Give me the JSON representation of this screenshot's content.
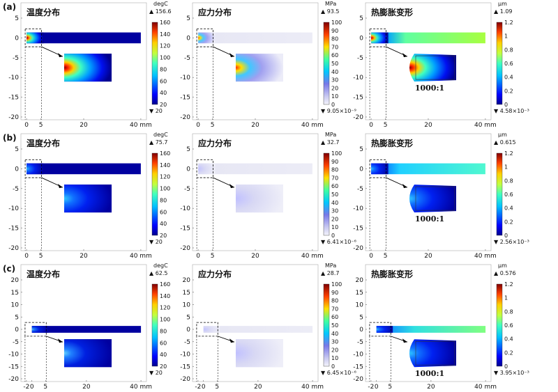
{
  "figure": {
    "rows": [
      {
        "label": "(a)",
        "panels": [
          {
            "title": "温度分布",
            "unit": "degC",
            "max_label": "156.6",
            "min_label": "20",
            "cb_ticks": [
              "160",
              "140",
              "120",
              "100",
              "80",
              "60",
              "40",
              "20"
            ],
            "cmap": "jet",
            "field": "temp",
            "intensity": 1.0,
            "ratio": ""
          },
          {
            "title": "应力分布",
            "unit": "MPa",
            "max_label": "93.5",
            "min_label": "9.05×10⁻⁹",
            "cb_ticks": [
              "100",
              "90",
              "80",
              "70",
              "60",
              "50",
              "40",
              "30",
              "20",
              "10",
              "0"
            ],
            "cmap": "stress",
            "field": "stress",
            "intensity": 1.0,
            "ratio": ""
          },
          {
            "title": "热膨胀变形",
            "unit": "μm",
            "max_label": "1.09",
            "min_label": "4.58×10⁻³",
            "cb_ticks": [
              "1.2",
              "1",
              "0.8",
              "0.6",
              "0.4",
              "0.2",
              "0"
            ],
            "cmap": "jet",
            "field": "deform",
            "intensity": 1.0,
            "ratio": "1000:1"
          }
        ],
        "x_ticks": [
          "0",
          "5",
          "20",
          "40 mm"
        ],
        "y_ticks": [
          "5",
          "0",
          "-5",
          "-10",
          "-15",
          "-20"
        ]
      },
      {
        "label": "(b)",
        "panels": [
          {
            "title": "温度分布",
            "unit": "degC",
            "max_label": "75.7",
            "min_label": "20",
            "cb_ticks": [
              "160",
              "140",
              "120",
              "100",
              "80",
              "60",
              "40",
              "20"
            ],
            "cmap": "jet",
            "field": "temp",
            "intensity": 0.45,
            "ratio": ""
          },
          {
            "title": "应力分布",
            "unit": "MPa",
            "max_label": "32.7",
            "min_label": "6.41×10⁻⁶",
            "cb_ticks": [
              "100",
              "90",
              "80",
              "70",
              "60",
              "50",
              "40",
              "30",
              "20",
              "10",
              "0"
            ],
            "cmap": "stress",
            "field": "stress",
            "intensity": 0.35,
            "ratio": ""
          },
          {
            "title": "热膨胀变形",
            "unit": "μm",
            "max_label": "0.615",
            "min_label": "2.56×10⁻³",
            "cb_ticks": [
              "1.2",
              "1",
              "0.8",
              "0.6",
              "0.4",
              "0.2",
              "0"
            ],
            "cmap": "jet",
            "field": "deform",
            "intensity": 0.6,
            "ratio": "1000:1"
          }
        ],
        "x_ticks": [
          "0",
          "5",
          "20",
          "40 mm"
        ],
        "y_ticks": [
          "5",
          "0",
          "-5",
          "-10",
          "-15",
          "-20"
        ]
      },
      {
        "label": "(c)",
        "panels": [
          {
            "title": "温度分布",
            "unit": "degC",
            "max_label": "62.5",
            "min_label": "20",
            "cb_ticks": [
              "160",
              "140",
              "120",
              "100",
              "80",
              "60",
              "40",
              "20"
            ],
            "cmap": "jet",
            "field": "temp",
            "intensity": 0.32,
            "ratio": ""
          },
          {
            "title": "应力分布",
            "unit": "MPa",
            "max_label": "28.7",
            "min_label": "6.45×10⁻⁶",
            "cb_ticks": [
              "100",
              "90",
              "80",
              "70",
              "60",
              "50",
              "40",
              "30",
              "20",
              "10",
              "0"
            ],
            "cmap": "stress",
            "field": "stress",
            "intensity": 0.3,
            "ratio": ""
          },
          {
            "title": "热膨胀变形",
            "unit": "μm",
            "max_label": "0.576",
            "min_label": "3.95×10⁻³",
            "cb_ticks": [
              "1.2",
              "1",
              "0.8",
              "0.6",
              "0.4",
              "0.2",
              "0"
            ],
            "cmap": "jet",
            "field": "deform",
            "intensity": 0.55,
            "ratio": "1000:1"
          }
        ],
        "x_ticks": [
          "-2",
          "0",
          "5",
          "20",
          "40 mm"
        ],
        "y_ticks": [
          "20",
          "15",
          "10",
          "5",
          "0",
          "-5",
          "-10",
          "-15",
          "-20"
        ]
      }
    ]
  }
}
